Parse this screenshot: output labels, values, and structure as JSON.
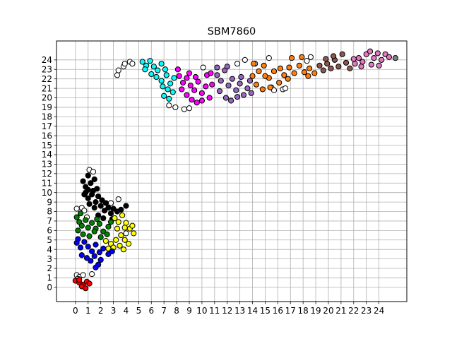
{
  "chart_data": {
    "type": "scatter",
    "title": "SBM7860",
    "xlabel": "",
    "ylabel": "",
    "xlim": [
      -1.5,
      26.2
    ],
    "ylim": [
      -1.5,
      26.0
    ],
    "xticks": [
      "0",
      "1",
      "2",
      "3",
      "4",
      "5",
      "6",
      "7",
      "8",
      "9",
      "10",
      "11",
      "12",
      "13",
      "14",
      "15",
      "16",
      "17",
      "18",
      "19",
      "20",
      "21",
      "22",
      "23",
      "24"
    ],
    "yticks": [
      "0",
      "1",
      "2",
      "3",
      "4",
      "5",
      "6",
      "7",
      "8",
      "9",
      "10",
      "11",
      "12",
      "13",
      "14",
      "15",
      "16",
      "17",
      "18",
      "19",
      "20",
      "21",
      "22",
      "23",
      "24"
    ],
    "grid": true,
    "legend": "none",
    "series": [
      {
        "color": "#ffffff",
        "points": [
          [
            3.3,
            22.4
          ],
          [
            3.4,
            22.9
          ],
          [
            3.8,
            23.3
          ],
          [
            3.9,
            23.6
          ],
          [
            4.3,
            23.8
          ],
          [
            4.5,
            23.6
          ],
          [
            7.4,
            19.2
          ],
          [
            7.9,
            19.0
          ],
          [
            8.6,
            18.8
          ],
          [
            9.0,
            18.9
          ],
          [
            10.1,
            23.2
          ],
          [
            12.8,
            23.6
          ],
          [
            13.4,
            24.0
          ],
          [
            14.2,
            23.6
          ],
          [
            15.3,
            24.2
          ],
          [
            15.5,
            21.1
          ],
          [
            15.7,
            20.8
          ],
          [
            16.4,
            20.9
          ],
          [
            16.6,
            21.0
          ],
          [
            18.3,
            23.9
          ],
          [
            18.6,
            24.3
          ],
          [
            0.1,
            8.3
          ],
          [
            0.5,
            8.4
          ],
          [
            0.7,
            8.1
          ],
          [
            1.1,
            12.4
          ],
          [
            1.4,
            12.2
          ],
          [
            0.9,
            7.4
          ],
          [
            2.8,
            8.9
          ],
          [
            3.4,
            9.3
          ],
          [
            0.1,
            1.3
          ],
          [
            0.3,
            1.1
          ],
          [
            0.6,
            1.3
          ],
          [
            0.2,
            0.9
          ],
          [
            1.3,
            1.4
          ],
          [
            4.0,
            5.7
          ]
        ]
      },
      {
        "color": "#000000",
        "points": [
          [
            0.6,
            11.2
          ],
          [
            0.8,
            10.6
          ],
          [
            1.0,
            11.8
          ],
          [
            1.2,
            11.0
          ],
          [
            1.4,
            10.2
          ],
          [
            0.7,
            9.8
          ],
          [
            1.0,
            9.4
          ],
          [
            1.3,
            9.8
          ],
          [
            1.6,
            9.0
          ],
          [
            1.8,
            9.6
          ],
          [
            1.1,
            8.8
          ],
          [
            1.5,
            8.4
          ],
          [
            2.0,
            8.6
          ],
          [
            2.3,
            8.1
          ],
          [
            2.6,
            8.4
          ],
          [
            2.8,
            7.8
          ],
          [
            3.0,
            8.3
          ],
          [
            1.8,
            7.6
          ],
          [
            2.2,
            7.3
          ],
          [
            2.9,
            7.2
          ],
          [
            3.3,
            8.0
          ],
          [
            3.6,
            8.2
          ],
          [
            4.0,
            8.6
          ],
          [
            1.0,
            10.3
          ],
          [
            1.5,
            11.4
          ],
          [
            1.7,
            10.4
          ],
          [
            0.8,
            10.0
          ],
          [
            2.1,
            9.2
          ],
          [
            2.4,
            8.9
          ]
        ]
      },
      {
        "color": "#008000",
        "points": [
          [
            0.1,
            7.4
          ],
          [
            0.3,
            6.9
          ],
          [
            0.5,
            6.5
          ],
          [
            0.8,
            7.1
          ],
          [
            1.0,
            6.3
          ],
          [
            1.3,
            6.8
          ],
          [
            1.6,
            6.2
          ],
          [
            1.9,
            6.7
          ],
          [
            2.2,
            5.9
          ],
          [
            2.6,
            6.4
          ],
          [
            0.2,
            6.0
          ],
          [
            0.6,
            5.6
          ],
          [
            1.1,
            5.4
          ],
          [
            1.5,
            5.9
          ],
          [
            2.0,
            5.3
          ],
          [
            2.5,
            5.6
          ],
          [
            2.8,
            6.9
          ],
          [
            0.4,
            7.8
          ],
          [
            1.7,
            7.2
          ]
        ]
      },
      {
        "color": "#ffff00",
        "points": [
          [
            3.1,
            7.3
          ],
          [
            3.4,
            6.9
          ],
          [
            3.7,
            7.6
          ],
          [
            4.0,
            6.8
          ],
          [
            4.3,
            6.2
          ],
          [
            4.6,
            5.7
          ],
          [
            3.3,
            6.2
          ],
          [
            3.6,
            5.5
          ],
          [
            3.9,
            5.0
          ],
          [
            4.2,
            4.6
          ],
          [
            3.2,
            5.0
          ],
          [
            3.5,
            4.4
          ],
          [
            3.8,
            4.0
          ],
          [
            2.4,
            4.9
          ],
          [
            2.8,
            4.6
          ],
          [
            3.0,
            4.2
          ],
          [
            2.6,
            4.1
          ],
          [
            4.5,
            6.5
          ],
          [
            3.9,
            6.3
          ]
        ]
      },
      {
        "color": "#0000ff",
        "points": [
          [
            0.1,
            4.7
          ],
          [
            0.4,
            4.2
          ],
          [
            0.7,
            4.8
          ],
          [
            1.0,
            4.3
          ],
          [
            1.3,
            3.8
          ],
          [
            1.6,
            4.5
          ],
          [
            1.9,
            3.7
          ],
          [
            2.2,
            4.1
          ],
          [
            2.6,
            3.5
          ],
          [
            2.9,
            3.8
          ],
          [
            0.5,
            3.4
          ],
          [
            0.9,
            3.1
          ],
          [
            1.2,
            2.8
          ],
          [
            1.5,
            3.3
          ],
          [
            1.8,
            2.4
          ],
          [
            2.0,
            2.9
          ],
          [
            1.6,
            2.1
          ],
          [
            0.2,
            5.1
          ]
        ]
      },
      {
        "color": "#ff0000",
        "points": [
          [
            0.0,
            0.7
          ],
          [
            0.3,
            0.5
          ],
          [
            0.6,
            0.3
          ],
          [
            0.9,
            0.6
          ],
          [
            0.5,
            0.1
          ],
          [
            0.8,
            -0.1
          ],
          [
            1.1,
            0.4
          ],
          [
            0.3,
            0.8
          ]
        ]
      },
      {
        "color": "#00ffff",
        "points": [
          [
            5.3,
            23.8
          ],
          [
            5.6,
            23.4
          ],
          [
            5.9,
            23.9
          ],
          [
            6.2,
            23.3
          ],
          [
            6.5,
            22.9
          ],
          [
            6.8,
            23.6
          ],
          [
            7.1,
            23.0
          ],
          [
            5.5,
            23.0
          ],
          [
            6.0,
            22.5
          ],
          [
            6.4,
            22.2
          ],
          [
            6.8,
            21.8
          ],
          [
            7.2,
            22.4
          ],
          [
            7.5,
            21.5
          ],
          [
            7.3,
            20.9
          ],
          [
            7.7,
            20.6
          ],
          [
            7.0,
            20.2
          ],
          [
            7.4,
            19.9
          ],
          [
            6.9,
            21.2
          ],
          [
            7.8,
            22.1
          ]
        ]
      },
      {
        "color": "#ff00ff",
        "points": [
          [
            8.2,
            22.3
          ],
          [
            8.5,
            21.6
          ],
          [
            8.8,
            22.1
          ],
          [
            9.1,
            21.3
          ],
          [
            9.4,
            20.8
          ],
          [
            9.7,
            21.7
          ],
          [
            10.0,
            20.5
          ],
          [
            10.3,
            21.2
          ],
          [
            10.6,
            20.0
          ],
          [
            8.4,
            20.9
          ],
          [
            8.8,
            20.3
          ],
          [
            9.2,
            19.8
          ],
          [
            9.6,
            19.5
          ],
          [
            10.0,
            19.7
          ],
          [
            10.4,
            22.4
          ],
          [
            10.7,
            22.6
          ],
          [
            8.1,
            23.0
          ],
          [
            9.0,
            22.6
          ],
          [
            10.8,
            21.4
          ],
          [
            9.5,
            22.2
          ]
        ]
      },
      {
        "color": "#9467bd",
        "points": [
          [
            11.2,
            22.4
          ],
          [
            11.5,
            21.8
          ],
          [
            11.8,
            22.9
          ],
          [
            12.1,
            21.3
          ],
          [
            12.4,
            22.0
          ],
          [
            12.7,
            20.8
          ],
          [
            13.0,
            21.5
          ],
          [
            13.3,
            20.3
          ],
          [
            13.6,
            21.0
          ],
          [
            13.9,
            20.5
          ],
          [
            11.4,
            20.7
          ],
          [
            11.9,
            20.0
          ],
          [
            12.3,
            19.7
          ],
          [
            12.8,
            20.1
          ],
          [
            11.2,
            23.2
          ],
          [
            12.0,
            23.3
          ],
          [
            13.1,
            22.2
          ],
          [
            13.8,
            21.8
          ]
        ]
      },
      {
        "color": "#ff7f0e",
        "points": [
          [
            14.1,
            23.6
          ],
          [
            14.5,
            22.8
          ],
          [
            14.9,
            23.4
          ],
          [
            15.3,
            22.1
          ],
          [
            15.7,
            22.8
          ],
          [
            16.1,
            21.6
          ],
          [
            16.5,
            22.4
          ],
          [
            16.9,
            23.2
          ],
          [
            17.3,
            22.6
          ],
          [
            17.7,
            23.4
          ],
          [
            18.1,
            22.7
          ],
          [
            18.5,
            23.1
          ],
          [
            18.9,
            22.6
          ],
          [
            14.3,
            21.4
          ],
          [
            14.8,
            20.9
          ],
          [
            15.4,
            21.1
          ],
          [
            16.2,
            23.1
          ],
          [
            17.1,
            24.2
          ],
          [
            17.9,
            24.3
          ],
          [
            16.8,
            22.0
          ],
          [
            15.0,
            22.3
          ],
          [
            14.0,
            22.3
          ],
          [
            18.4,
            22.3
          ]
        ]
      },
      {
        "color": "#8c564b",
        "points": [
          [
            19.3,
            23.4
          ],
          [
            19.6,
            22.9
          ],
          [
            19.9,
            23.6
          ],
          [
            20.2,
            23.1
          ],
          [
            20.5,
            24.0
          ],
          [
            20.8,
            23.3
          ],
          [
            21.1,
            24.6
          ],
          [
            21.4,
            23.7
          ],
          [
            21.7,
            23.1
          ],
          [
            20.4,
            24.4
          ],
          [
            19.8,
            24.1
          ]
        ]
      },
      {
        "color": "#e377c2",
        "points": [
          [
            22.1,
            23.6
          ],
          [
            22.4,
            24.2
          ],
          [
            22.7,
            23.8
          ],
          [
            23.0,
            24.6
          ],
          [
            23.3,
            24.9
          ],
          [
            23.6,
            24.2
          ],
          [
            23.9,
            24.7
          ],
          [
            24.2,
            24.0
          ],
          [
            24.5,
            24.6
          ],
          [
            24.8,
            24.3
          ],
          [
            22.6,
            23.3
          ],
          [
            23.4,
            23.5
          ],
          [
            24.0,
            23.4
          ],
          [
            22.0,
            24.1
          ]
        ]
      },
      {
        "color": "#7f7f7f",
        "points": [
          [
            25.3,
            24.2
          ]
        ]
      }
    ]
  }
}
